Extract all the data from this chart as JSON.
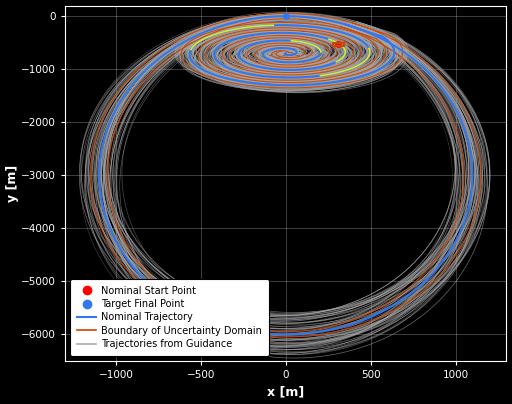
{
  "xlabel": "x [m]",
  "ylabel": "y [m]",
  "xlim": [
    -1300,
    1300
  ],
  "ylim": [
    -6500,
    200
  ],
  "xticks": [
    -1000,
    -500,
    0,
    500,
    1000
  ],
  "yticks": [
    0,
    -1000,
    -2000,
    -3000,
    -4000,
    -5000,
    -6000
  ],
  "background_color": "#000000",
  "grid_color": "#ffffff",
  "nominal_color": "#3377ee",
  "boundary_color": "#cc4400",
  "guidance_color": "#aaaaaa",
  "figsize": [
    5.12,
    4.04
  ],
  "dpi": 100,
  "n_guidance": 80,
  "start_x": 310,
  "start_y": -530,
  "end_x": 0,
  "end_y": 0
}
